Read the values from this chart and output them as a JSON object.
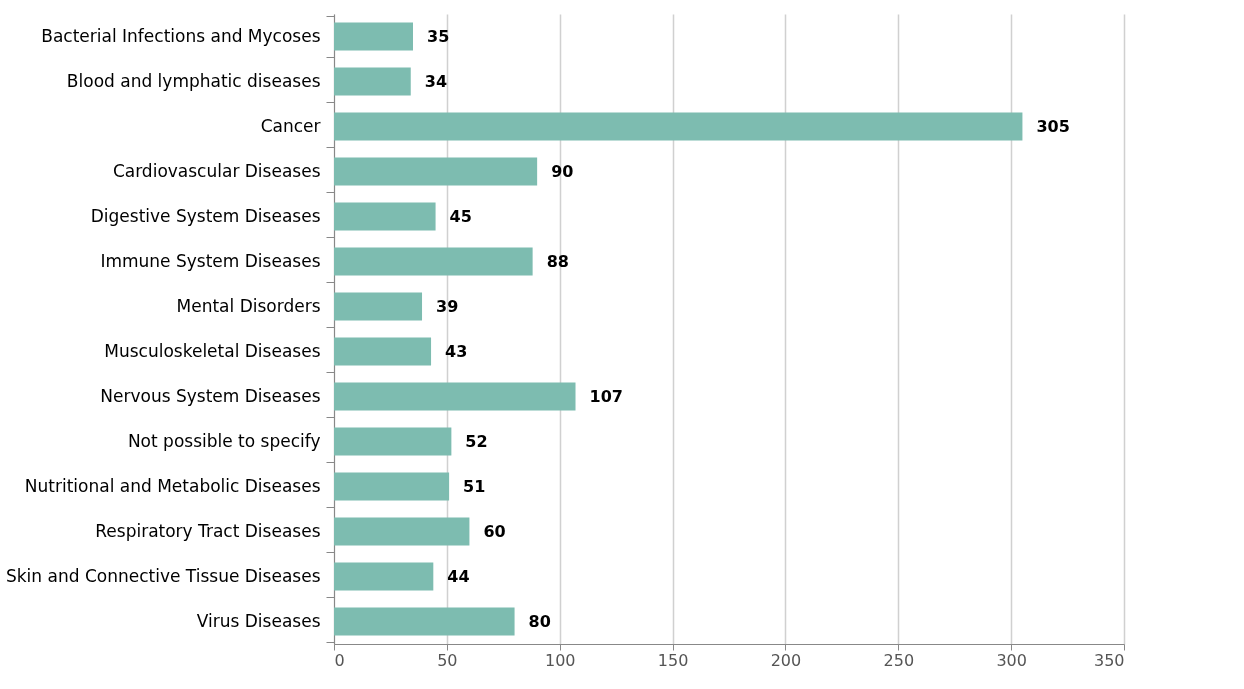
{
  "chart_data": {
    "type": "bar",
    "orientation": "horizontal",
    "categories": [
      "Bacterial Infections and Mycoses",
      "Blood and lymphatic diseases",
      "Cancer",
      "Cardiovascular Diseases",
      "Digestive System Diseases",
      "Immune System Diseases",
      "Mental Disorders",
      "Musculoskeletal Diseases",
      "Nervous System Diseases",
      "Not possible to specify",
      "Nutritional and Metabolic Diseases",
      "Respiratory Tract Diseases",
      "Skin and Connective Tissue Diseases",
      "Virus Diseases"
    ],
    "values": [
      35,
      34,
      305,
      90,
      45,
      88,
      39,
      43,
      107,
      52,
      51,
      60,
      44,
      80
    ],
    "color": "#7dbcb0",
    "xlim": [
      0,
      350
    ],
    "xticks": [
      0,
      50,
      100,
      150,
      200,
      250,
      300,
      350
    ],
    "grid": "x",
    "data_labels": true
  }
}
